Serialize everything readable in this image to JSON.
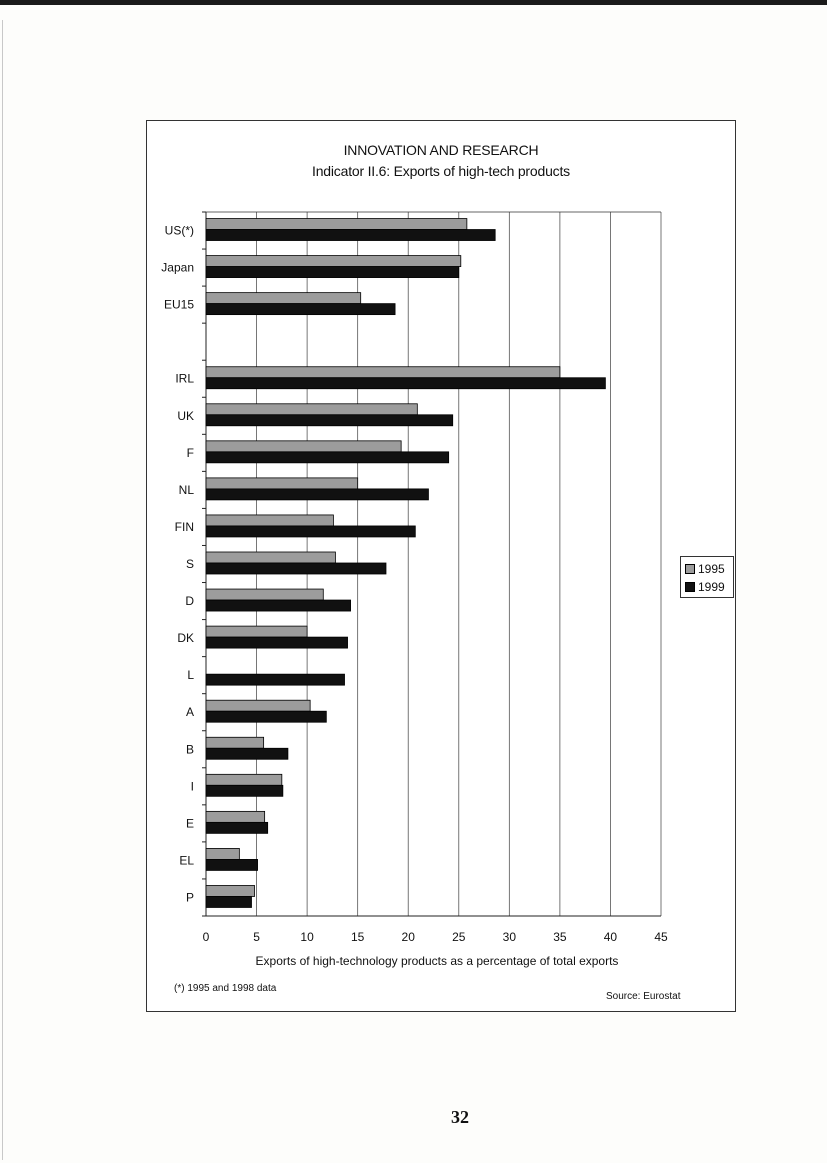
{
  "page": {
    "number": "32"
  },
  "chart_data": {
    "type": "bar",
    "orientation": "horizontal",
    "title": "INNOVATION AND RESEARCH",
    "subtitle": "Indicator II.6: Exports of high-tech products",
    "xlabel": "Exports of high-technology products as a percentage of total exports",
    "ylabel": "",
    "xlim": [
      0,
      45
    ],
    "xticks": [
      "0",
      "5",
      "10",
      "15",
      "20",
      "25",
      "30",
      "35",
      "40",
      "45"
    ],
    "grid": true,
    "legend_position": "right",
    "categories": [
      "US(*)",
      "Japan",
      "EU15",
      "",
      "IRL",
      "UK",
      "F",
      "NL",
      "FIN",
      "S",
      "D",
      "DK",
      "L",
      "A",
      "B",
      "I",
      "E",
      "EL",
      "P"
    ],
    "series": [
      {
        "name": "1995",
        "color": "#9c9c9c",
        "values": [
          25.8,
          25.2,
          15.3,
          null,
          35.0,
          20.9,
          19.3,
          15.0,
          12.6,
          12.8,
          11.6,
          10.0,
          null,
          10.3,
          5.7,
          7.5,
          5.8,
          3.3,
          4.8
        ]
      },
      {
        "name": "1999",
        "color": "#111111",
        "values": [
          28.6,
          25.0,
          18.7,
          null,
          39.5,
          24.4,
          24.0,
          22.0,
          20.7,
          17.8,
          14.3,
          14.0,
          13.7,
          11.9,
          8.1,
          7.6,
          6.1,
          5.1,
          4.5
        ]
      }
    ],
    "footnote": "(*) 1995 and 1998 data",
    "source": "Source: Eurostat"
  }
}
